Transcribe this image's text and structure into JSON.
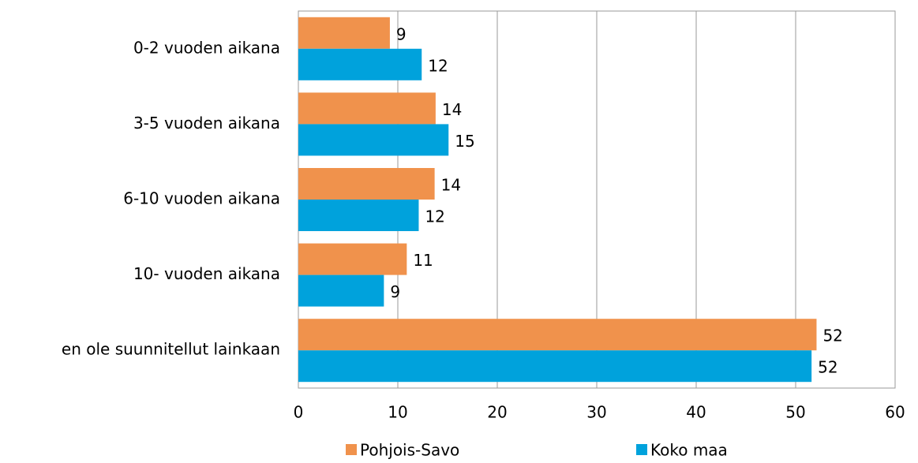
{
  "chart_data": {
    "type": "hbar",
    "categories": [
      "0-2 vuoden aikana",
      "3-5 vuoden aikana",
      "6-10 vuoden aikana",
      "10- vuoden aikana",
      "en ole suunnitellut  lainkaan"
    ],
    "series": [
      {
        "name": "Pohjois-Savo",
        "color": "#f0924c",
        "values": [
          9.2,
          13.8,
          13.7,
          10.9,
          52.1
        ],
        "value_labels": [
          "9",
          "14",
          "14",
          "11",
          "52"
        ]
      },
      {
        "name": "Koko maa",
        "color": "#00a2dc",
        "values": [
          12.4,
          15.1,
          12.1,
          8.6,
          51.6
        ],
        "value_labels": [
          "12",
          "15",
          "12",
          "9",
          "52"
        ]
      }
    ],
    "xlim": [
      0,
      60
    ],
    "xticks": [
      0,
      10,
      20,
      30,
      40,
      50,
      60
    ],
    "grid": true,
    "legend": "bottom"
  }
}
